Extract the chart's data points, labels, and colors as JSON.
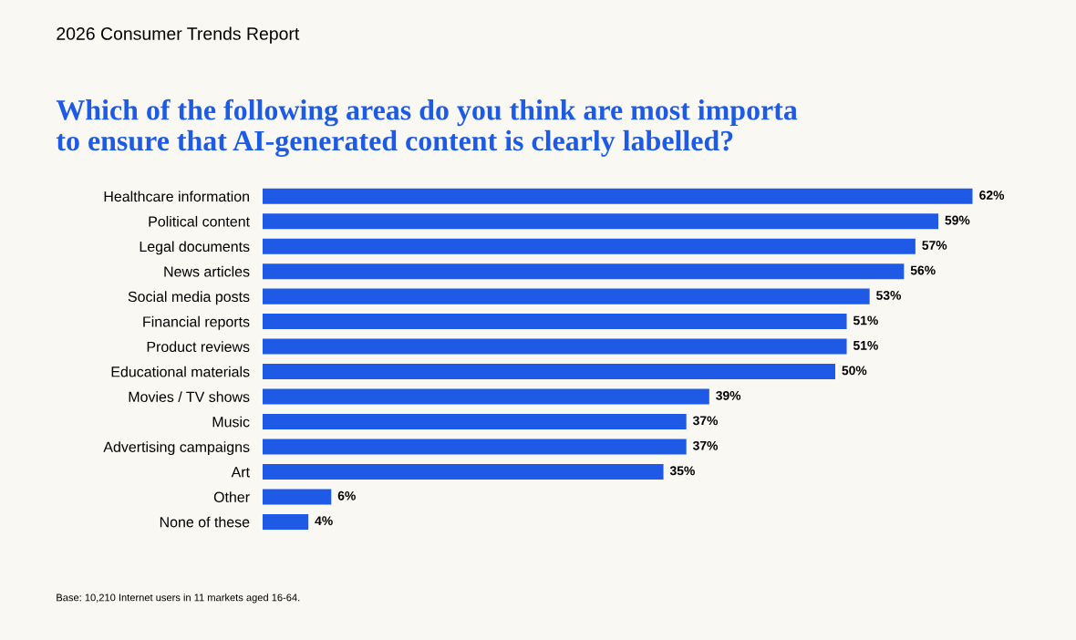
{
  "chart_data": {
    "type": "bar",
    "orientation": "horizontal",
    "title": "Which of the following areas do you think are most importa\nto ensure that AI-generated content is clearly labelled?",
    "categories": [
      "Healthcare information",
      "Political content",
      "Legal documents",
      "News articles",
      "Social media posts",
      "Financial reports",
      "Product reviews",
      "Educational materials",
      "Movies / TV shows",
      "Music",
      "Advertising campaigns",
      "Art",
      "Other",
      "None of these"
    ],
    "values": [
      62,
      59,
      57,
      56,
      53,
      51,
      51,
      50,
      39,
      37,
      37,
      35,
      6,
      4
    ],
    "value_labels": [
      "62%",
      "59%",
      "57%",
      "56%",
      "53%",
      "51%",
      "51%",
      "50%",
      "39%",
      "37%",
      "37%",
      "35%",
      "6%",
      "4%"
    ],
    "color": "#1f5ae6",
    "tick_labels": "y",
    "grid": false,
    "legend": false,
    "annotations": [
      "2026 Consumer Trends Report",
      "Base: 10,210 Internet users in 11 markets aged 16-64."
    ]
  }
}
